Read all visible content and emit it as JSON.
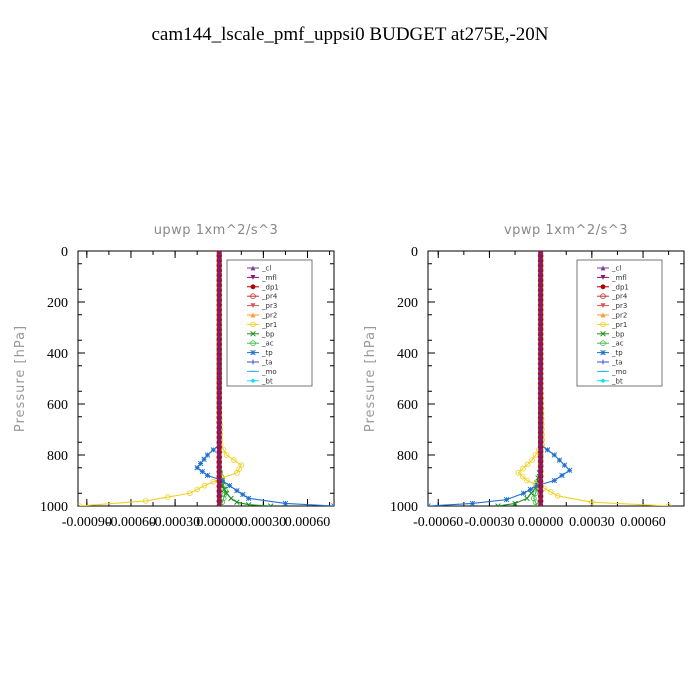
{
  "page": {
    "title": "cam144_lscale_pmf_uppsi0  BUDGET at275E,-20N"
  },
  "colors": {
    "_cl": "#7b3f9e",
    "_mfl": "#8a1a6a",
    "_dp1": "#b00000",
    "_pr4": "#c83232",
    "_pr3": "#e05050",
    "_pr2": "#ff9a2a",
    "_pr1": "#f0d020",
    "_bp": "#208a20",
    "_ac": "#40c040",
    "_tp": "#1f6fd0",
    "_ta": "#3a4fd8",
    "_mo": "#3ab0d8",
    "_bt": "#10e0e8"
  },
  "chart_data": [
    {
      "type": "line",
      "title": "upwp   1xm^2/s^3",
      "ylabel": "Pressure [hPa]",
      "xlabel": "",
      "xlim": [
        -0.00096,
        0.00078
      ],
      "ylim": [
        1000,
        0
      ],
      "y_inverted": true,
      "xticks": [
        -0.0009,
        -0.0006,
        -0.0003,
        0.0,
        0.0003,
        0.0006
      ],
      "xtick_labels": [
        "-0.00090",
        "-0.00060",
        "-0.00030",
        "0.00000",
        "0.00030",
        "0.00060"
      ],
      "yticks": [
        0,
        200,
        400,
        600,
        800,
        1000
      ],
      "ytick_labels": [
        "0",
        "200",
        "400",
        "600",
        "800",
        "1000"
      ],
      "grid": false,
      "legend_position": "top-right",
      "series": [
        {
          "name": "_cl",
          "x": [
            0,
            0,
            0,
            0,
            0
          ],
          "y": [
            0,
            250,
            500,
            750,
            1000
          ]
        },
        {
          "name": "_mfl",
          "x": [
            0,
            0,
            0,
            0,
            0
          ],
          "y": [
            0,
            250,
            500,
            750,
            1000
          ]
        },
        {
          "name": "_dp1",
          "x": [
            0,
            0,
            0,
            0,
            0
          ],
          "y": [
            0,
            250,
            500,
            750,
            1000
          ]
        },
        {
          "name": "_pr4",
          "x": [
            0,
            0,
            0,
            0,
            0
          ],
          "y": [
            0,
            250,
            500,
            750,
            1000
          ]
        },
        {
          "name": "_pr3",
          "x": [
            0,
            0,
            0,
            0,
            0
          ],
          "y": [
            0,
            250,
            500,
            750,
            1000
          ]
        },
        {
          "name": "_pr2",
          "x": [
            0,
            0,
            0,
            0,
            0
          ],
          "y": [
            0,
            250,
            500,
            750,
            1000
          ]
        },
        {
          "name": "_pr1",
          "x": [
            0,
            0,
            1e-05,
            5e-05,
            0.00015,
            0.00012,
            2e-05,
            -0.0001,
            -0.0002,
            -0.0005,
            -0.00095
          ],
          "y": [
            0,
            600,
            760,
            800,
            840,
            870,
            890,
            920,
            950,
            980,
            1000
          ]
        },
        {
          "name": "_bp",
          "x": [
            0,
            0,
            0,
            2e-05,
            5e-05,
            8e-05,
            0.00012,
            0.0002,
            0.00035
          ],
          "y": [
            0,
            820,
            880,
            920,
            950,
            970,
            985,
            995,
            1000
          ]
        },
        {
          "name": "_ac",
          "x": [
            0,
            0,
            2e-05,
            4e-05,
            3e-05,
            1e-05
          ],
          "y": [
            0,
            850,
            900,
            940,
            970,
            1000
          ]
        },
        {
          "name": "_tp",
          "x": [
            0,
            0,
            -8e-05,
            -0.00015,
            -8e-05,
            2e-05,
            0.00012,
            0.0002,
            0.00045,
            0.00078
          ],
          "y": [
            0,
            760,
            800,
            850,
            880,
            900,
            940,
            970,
            990,
            1000
          ]
        },
        {
          "name": "_ta",
          "x": [
            0,
            0,
            0,
            0,
            0
          ],
          "y": [
            0,
            250,
            500,
            750,
            1000
          ]
        },
        {
          "name": "_mo",
          "x": [
            0,
            0,
            0,
            0,
            0
          ],
          "y": [
            0,
            250,
            500,
            750,
            1000
          ]
        },
        {
          "name": "_bt",
          "x": [
            0,
            0,
            0,
            0,
            0
          ],
          "y": [
            0,
            250,
            500,
            750,
            1000
          ]
        }
      ]
    },
    {
      "type": "line",
      "title": "vpwp   1xm^2/s^3",
      "ylabel": "Pressure [hPa]",
      "xlabel": "",
      "xlim": [
        -0.00066,
        0.00084
      ],
      "ylim": [
        1000,
        0
      ],
      "y_inverted": true,
      "xticks": [
        -0.0006,
        -0.0003,
        0.0,
        0.0003,
        0.0006
      ],
      "xtick_labels": [
        "-0.00060",
        "-0.00030",
        "0.00000",
        "0.00030",
        "0.00060"
      ],
      "yticks": [
        0,
        200,
        400,
        600,
        800,
        1000
      ],
      "ytick_labels": [
        "0",
        "200",
        "400",
        "600",
        "800",
        "1000"
      ],
      "grid": false,
      "legend_position": "top-right",
      "series": [
        {
          "name": "_cl",
          "x": [
            0,
            0,
            0,
            0,
            0
          ],
          "y": [
            0,
            250,
            500,
            750,
            1000
          ]
        },
        {
          "name": "_mfl",
          "x": [
            0,
            0,
            0,
            0,
            0
          ],
          "y": [
            0,
            250,
            500,
            750,
            1000
          ]
        },
        {
          "name": "_dp1",
          "x": [
            0,
            0,
            0,
            0,
            0
          ],
          "y": [
            0,
            250,
            500,
            750,
            1000
          ]
        },
        {
          "name": "_pr4",
          "x": [
            0,
            0,
            0,
            0,
            0
          ],
          "y": [
            0,
            250,
            500,
            750,
            1000
          ]
        },
        {
          "name": "_pr3",
          "x": [
            0,
            0,
            0,
            0,
            0
          ],
          "y": [
            0,
            250,
            500,
            750,
            1000
          ]
        },
        {
          "name": "_pr2",
          "x": [
            0,
            0,
            0,
            0,
            0
          ],
          "y": [
            0,
            250,
            500,
            750,
            1000
          ]
        },
        {
          "name": "_pr1",
          "x": [
            0,
            0,
            1e-05,
            -5e-05,
            -0.00013,
            -8e-05,
            2e-05,
            0.0001,
            0.0003,
            0.00075
          ],
          "y": [
            0,
            500,
            760,
            820,
            870,
            900,
            930,
            960,
            985,
            1000
          ]
        },
        {
          "name": "_bp",
          "x": [
            0,
            0,
            -3e-05,
            -8e-05,
            -0.00015,
            -0.00025
          ],
          "y": [
            0,
            850,
            930,
            970,
            990,
            1000
          ]
        },
        {
          "name": "_ac",
          "x": [
            0,
            0,
            -2e-05,
            -4e-05,
            -2e-05
          ],
          "y": [
            0,
            880,
            930,
            970,
            1000
          ]
        },
        {
          "name": "_tp",
          "x": [
            0,
            0,
            8e-05,
            0.00017,
            8e-05,
            -2e-05,
            -0.0001,
            -0.0002,
            -0.0004,
            -0.00066
          ],
          "y": [
            0,
            760,
            800,
            860,
            900,
            920,
            950,
            975,
            990,
            1000
          ]
        },
        {
          "name": "_ta",
          "x": [
            0,
            0,
            0,
            0,
            0
          ],
          "y": [
            0,
            250,
            500,
            750,
            1000
          ]
        },
        {
          "name": "_mo",
          "x": [
            0,
            0,
            0,
            0,
            0
          ],
          "y": [
            0,
            250,
            500,
            750,
            1000
          ]
        },
        {
          "name": "_bt",
          "x": [
            0,
            0,
            0,
            0,
            0
          ],
          "y": [
            0,
            250,
            500,
            750,
            1000
          ]
        }
      ]
    }
  ]
}
